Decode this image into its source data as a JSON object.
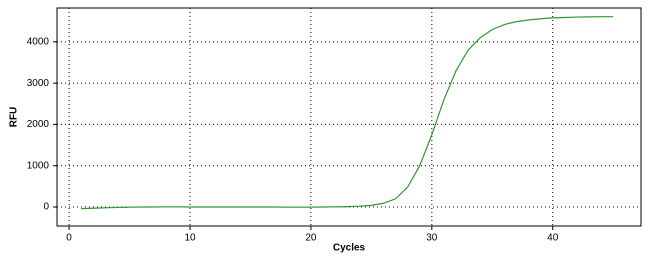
{
  "chart_data": {
    "type": "line",
    "x_label": "Cycles",
    "y_label": "RFU",
    "x": [
      1,
      2,
      3,
      4,
      5,
      6,
      7,
      8,
      9,
      10,
      11,
      12,
      13,
      14,
      15,
      16,
      17,
      18,
      19,
      20,
      21,
      22,
      23,
      24,
      25,
      26,
      27,
      28,
      29,
      30,
      31,
      32,
      33,
      34,
      35,
      36,
      37,
      38,
      39,
      40,
      41,
      42,
      43,
      44,
      45
    ],
    "series": [
      {
        "name": "RFU",
        "color": "#2e9a2e",
        "values": [
          -40,
          -30,
          -20,
          -10,
          -5,
          0,
          0,
          5,
          5,
          0,
          0,
          0,
          0,
          0,
          0,
          0,
          0,
          -5,
          -5,
          -5,
          0,
          5,
          10,
          20,
          40,
          90,
          200,
          480,
          1000,
          1750,
          2600,
          3300,
          3800,
          4100,
          4300,
          4420,
          4490,
          4530,
          4560,
          4580,
          4590,
          4600,
          4605,
          4610,
          4610
        ]
      }
    ],
    "xlim": [
      -1,
      47.3
    ],
    "ylim": [
      -460,
      4820
    ],
    "xticks": [
      0,
      10,
      20,
      30,
      40
    ],
    "yticks": [
      0,
      1000,
      2000,
      3000,
      4000
    ],
    "grid": true
  }
}
